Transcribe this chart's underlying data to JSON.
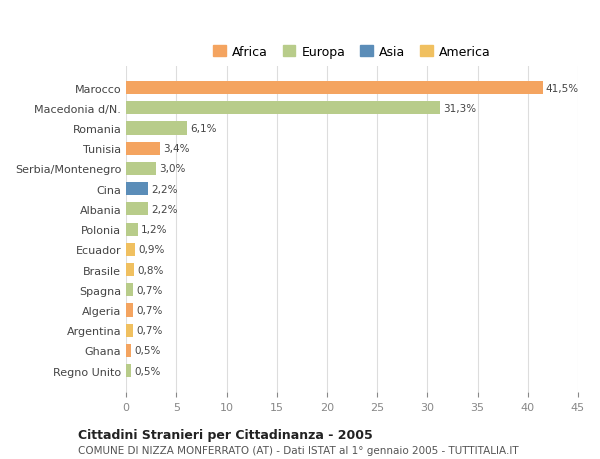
{
  "countries": [
    "Marocco",
    "Macedonia d/N.",
    "Romania",
    "Tunisia",
    "Serbia/Montenegro",
    "Cina",
    "Albania",
    "Polonia",
    "Ecuador",
    "Brasile",
    "Spagna",
    "Algeria",
    "Argentina",
    "Ghana",
    "Regno Unito"
  ],
  "values": [
    41.5,
    31.3,
    6.1,
    3.4,
    3.0,
    2.2,
    2.2,
    1.2,
    0.9,
    0.8,
    0.7,
    0.7,
    0.7,
    0.5,
    0.5
  ],
  "labels": [
    "41,5%",
    "31,3%",
    "6,1%",
    "3,4%",
    "3,0%",
    "2,2%",
    "2,2%",
    "1,2%",
    "0,9%",
    "0,8%",
    "0,7%",
    "0,7%",
    "0,7%",
    "0,5%",
    "0,5%"
  ],
  "continents": [
    "Africa",
    "Europa",
    "Europa",
    "Africa",
    "Europa",
    "Asia",
    "Europa",
    "Europa",
    "America",
    "America",
    "Europa",
    "Africa",
    "America",
    "Africa",
    "Europa"
  ],
  "continent_colors": {
    "Africa": "#F4A460",
    "Europa": "#B8CC8A",
    "Asia": "#5B8DB8",
    "America": "#F0C060"
  },
  "legend_order": [
    "Africa",
    "Europa",
    "Asia",
    "America"
  ],
  "legend_colors": {
    "Africa": "#F4A460",
    "Europa": "#B8CC8A",
    "Asia": "#5B8DB8",
    "America": "#F0C060"
  },
  "xlim": [
    0,
    45
  ],
  "xticks": [
    0,
    5,
    10,
    15,
    20,
    25,
    30,
    35,
    40,
    45
  ],
  "title": "Cittadini Stranieri per Cittadinanza - 2005",
  "subtitle": "COMUNE DI NIZZA MONFERRATO (AT) - Dati ISTAT al 1° gennaio 2005 - TUTTITALIA.IT",
  "background_color": "#ffffff",
  "grid_color": "#dddddd",
  "bar_height": 0.65,
  "figsize": [
    6.0,
    4.6
  ],
  "dpi": 100
}
